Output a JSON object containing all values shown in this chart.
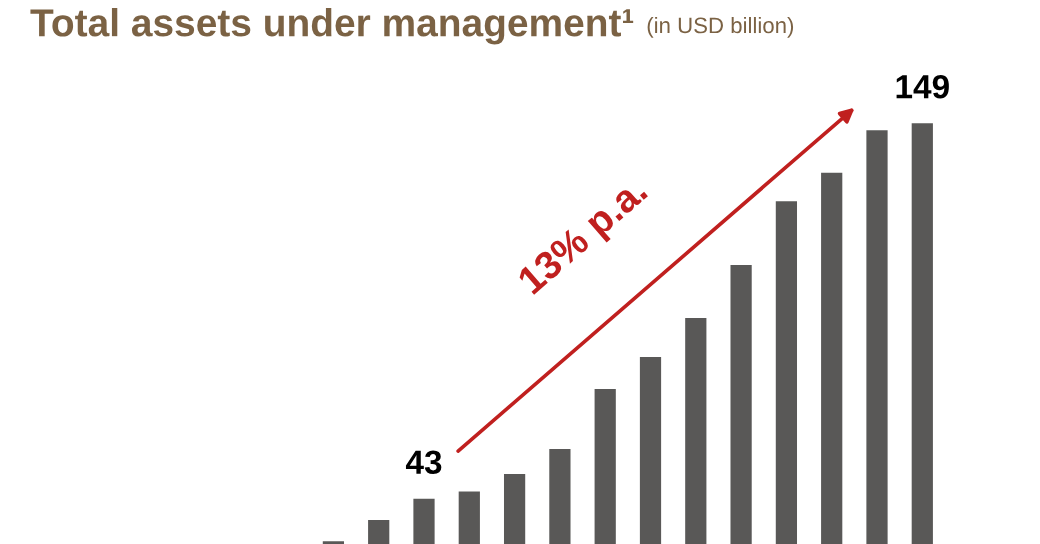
{
  "chart_data": {
    "type": "bar",
    "title": "Total assets under management¹",
    "subtitle": "(in USD billion)",
    "categories": [
      null,
      null,
      null,
      null,
      null,
      null,
      null,
      null,
      null,
      null,
      null,
      null,
      null,
      null
    ],
    "series": [
      {
        "color": "#595857",
        "values": [
          31,
          37,
          43,
          45,
          50,
          57,
          74,
          83,
          94,
          109,
          127,
          135,
          147,
          149
        ],
        "value_labels": [
          null,
          null,
          "43",
          null,
          null,
          null,
          null,
          null,
          null,
          null,
          null,
          null,
          null,
          "149"
        ]
      }
    ],
    "legend": false,
    "annotations": [
      "13% p.a."
    ]
  }
}
